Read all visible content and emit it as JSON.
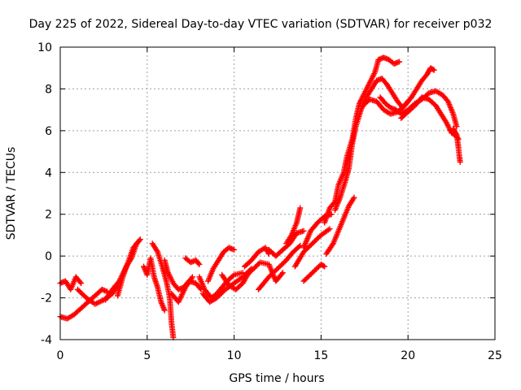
{
  "chart_data": {
    "type": "scatter",
    "title": "Day 225 of 2022, Sidereal Day-to-day VTEC variation (SDTVAR) for receiver p032",
    "xlabel": "GPS time / hours",
    "ylabel": "SDTVAR / TECUs",
    "xlim": [
      0,
      25
    ],
    "ylim": [
      -4,
      10
    ],
    "xticks": [
      0,
      5,
      10,
      15,
      20,
      25
    ],
    "yticks": [
      -4,
      -2,
      0,
      2,
      4,
      6,
      8,
      10
    ],
    "grid": true,
    "marker": "+",
    "series": [
      {
        "name": "SDTVAR",
        "color": "#ff0000",
        "tracks": [
          [
            [
              0.0,
              -1.3
            ],
            [
              0.3,
              -1.2
            ],
            [
              0.6,
              -1.6
            ],
            [
              0.9,
              -1.0
            ],
            [
              1.2,
              -1.3
            ]
          ],
          [
            [
              0.0,
              -2.9
            ],
            [
              0.4,
              -3.0
            ],
            [
              0.8,
              -2.8
            ],
            [
              1.2,
              -2.5
            ],
            [
              1.6,
              -2.2
            ],
            [
              2.0,
              -1.9
            ],
            [
              2.4,
              -1.6
            ],
            [
              2.7,
              -1.7
            ]
          ],
          [
            [
              1.0,
              -1.6
            ],
            [
              1.5,
              -2.0
            ],
            [
              2.0,
              -2.3
            ],
            [
              2.5,
              -2.1
            ],
            [
              3.0,
              -1.8
            ],
            [
              3.3,
              -1.4
            ]
          ],
          [
            [
              2.6,
              -2.1
            ],
            [
              3.0,
              -1.6
            ],
            [
              3.4,
              -1.2
            ],
            [
              3.8,
              -0.5
            ],
            [
              4.1,
              -0.1
            ],
            [
              4.4,
              0.6
            ],
            [
              4.6,
              0.8
            ]
          ],
          [
            [
              3.3,
              -1.9
            ],
            [
              3.6,
              -1.0
            ],
            [
              3.9,
              -0.3
            ],
            [
              4.2,
              0.4
            ],
            [
              4.5,
              0.7
            ]
          ],
          [
            [
              4.8,
              -0.5
            ],
            [
              5.0,
              -0.9
            ],
            [
              5.2,
              -0.1
            ],
            [
              5.4,
              -1.0
            ],
            [
              5.6,
              -1.5
            ],
            [
              5.8,
              -2.2
            ],
            [
              6.0,
              -2.6
            ]
          ],
          [
            [
              5.3,
              0.6
            ],
            [
              5.6,
              0.2
            ],
            [
              5.9,
              -0.6
            ],
            [
              6.1,
              -1.2
            ],
            [
              6.3,
              -2.0
            ],
            [
              6.4,
              -3.2
            ],
            [
              6.5,
              -3.9
            ]
          ],
          [
            [
              6.0,
              -0.2
            ],
            [
              6.2,
              -0.8
            ],
            [
              6.5,
              -1.3
            ],
            [
              6.8,
              -1.6
            ],
            [
              7.1,
              -1.5
            ],
            [
              7.4,
              -1.2
            ],
            [
              7.8,
              -1.3
            ],
            [
              8.1,
              -1.6
            ]
          ],
          [
            [
              6.4,
              -1.8
            ],
            [
              6.8,
              -2.2
            ],
            [
              7.2,
              -1.5
            ],
            [
              7.6,
              -1.0
            ]
          ],
          [
            [
              7.2,
              -0.1
            ],
            [
              7.5,
              -0.3
            ],
            [
              7.8,
              -0.2
            ],
            [
              8.0,
              -0.4
            ]
          ],
          [
            [
              8.0,
              -1.0
            ],
            [
              8.3,
              -1.6
            ],
            [
              8.7,
              -2.0
            ],
            [
              9.0,
              -1.8
            ],
            [
              9.3,
              -1.5
            ],
            [
              9.6,
              -1.2
            ],
            [
              10.0,
              -0.9
            ],
            [
              10.5,
              -0.8
            ]
          ],
          [
            [
              8.2,
              -1.8
            ],
            [
              8.6,
              -2.2
            ],
            [
              9.0,
              -2.0
            ],
            [
              9.5,
              -1.6
            ],
            [
              10.0,
              -1.3
            ],
            [
              10.5,
              -1.0
            ],
            [
              11.0,
              -0.6
            ]
          ],
          [
            [
              8.5,
              -1.2
            ],
            [
              8.8,
              -0.6
            ],
            [
              9.1,
              -0.2
            ],
            [
              9.4,
              0.2
            ],
            [
              9.7,
              0.4
            ],
            [
              10.0,
              0.3
            ]
          ],
          [
            [
              9.3,
              -0.9
            ],
            [
              9.7,
              -1.4
            ],
            [
              10.1,
              -1.6
            ],
            [
              10.5,
              -1.3
            ],
            [
              10.9,
              -0.7
            ]
          ],
          [
            [
              10.6,
              -0.5
            ],
            [
              11.0,
              -0.2
            ],
            [
              11.4,
              0.2
            ],
            [
              11.8,
              0.4
            ],
            [
              12.0,
              0.1
            ]
          ],
          [
            [
              10.6,
              -1.0
            ],
            [
              11.0,
              -0.7
            ],
            [
              11.5,
              -0.3
            ],
            [
              12.0,
              -0.4
            ],
            [
              12.4,
              -1.2
            ],
            [
              12.8,
              -0.8
            ]
          ],
          [
            [
              11.4,
              -1.6
            ],
            [
              12.0,
              -1.0
            ],
            [
              12.5,
              -0.6
            ],
            [
              13.0,
              -0.2
            ],
            [
              13.4,
              0.2
            ],
            [
              13.8,
              0.5
            ]
          ],
          [
            [
              12.0,
              0.3
            ],
            [
              12.4,
              0.0
            ],
            [
              12.8,
              0.3
            ],
            [
              13.2,
              0.6
            ],
            [
              13.6,
              1.1
            ],
            [
              14.0,
              1.2
            ]
          ],
          [
            [
              13.0,
              0.6
            ],
            [
              13.3,
              1.0
            ],
            [
              13.6,
              1.6
            ],
            [
              13.8,
              2.3
            ]
          ],
          [
            [
              13.5,
              -0.5
            ],
            [
              14.0,
              0.2
            ],
            [
              14.5,
              0.6
            ],
            [
              15.0,
              1.0
            ],
            [
              15.5,
              1.3
            ]
          ],
          [
            [
              14.0,
              0.4
            ],
            [
              14.4,
              1.2
            ],
            [
              14.8,
              1.6
            ],
            [
              15.2,
              1.9
            ],
            [
              15.6,
              2.0
            ]
          ],
          [
            [
              14.0,
              -1.2
            ],
            [
              14.5,
              -0.8
            ],
            [
              15.0,
              -0.4
            ],
            [
              15.2,
              -0.5
            ]
          ],
          [
            [
              15.3,
              0.1
            ],
            [
              15.7,
              0.6
            ],
            [
              16.0,
              1.2
            ],
            [
              16.3,
              1.8
            ],
            [
              16.6,
              2.4
            ],
            [
              16.9,
              2.8
            ]
          ],
          [
            [
              15.2,
              1.6
            ],
            [
              15.5,
              2.3
            ],
            [
              15.8,
              2.6
            ],
            [
              16.0,
              3.4
            ],
            [
              16.3,
              4.0
            ],
            [
              16.5,
              4.8
            ],
            [
              16.8,
              5.6
            ],
            [
              17.0,
              6.6
            ],
            [
              17.2,
              7.3
            ],
            [
              17.5,
              7.8
            ],
            [
              17.8,
              8.3
            ],
            [
              18.1,
              8.8
            ],
            [
              18.3,
              9.4
            ],
            [
              18.6,
              9.5
            ],
            [
              18.9,
              9.4
            ],
            [
              19.2,
              9.2
            ],
            [
              19.5,
              9.3
            ]
          ],
          [
            [
              15.8,
              2.2
            ],
            [
              16.1,
              2.8
            ],
            [
              16.4,
              3.6
            ],
            [
              16.6,
              4.2
            ],
            [
              16.8,
              5.4
            ],
            [
              17.0,
              6.2
            ],
            [
              17.3,
              7.0
            ],
            [
              17.6,
              7.6
            ],
            [
              17.9,
              8.0
            ],
            [
              18.2,
              8.4
            ],
            [
              18.5,
              8.5
            ],
            [
              18.8,
              8.2
            ],
            [
              19.1,
              7.8
            ],
            [
              19.4,
              7.4
            ],
            [
              19.7,
              7.1
            ],
            [
              20.0,
              7.4
            ]
          ],
          [
            [
              17.4,
              7.2
            ],
            [
              17.8,
              7.5
            ],
            [
              18.2,
              7.4
            ],
            [
              18.6,
              7.0
            ],
            [
              19.0,
              6.8
            ],
            [
              19.4,
              6.9
            ],
            [
              19.8,
              7.2
            ],
            [
              20.2,
              7.6
            ],
            [
              20.5,
              8.0
            ],
            [
              20.8,
              8.4
            ],
            [
              21.1,
              8.7
            ],
            [
              21.3,
              9.0
            ],
            [
              21.5,
              8.9
            ]
          ],
          [
            [
              18.4,
              7.6
            ],
            [
              18.7,
              7.3
            ],
            [
              19.0,
              7.1
            ],
            [
              19.3,
              7.0
            ],
            [
              19.6,
              6.8
            ],
            [
              20.0,
              7.0
            ],
            [
              20.4,
              7.3
            ],
            [
              20.8,
              7.5
            ],
            [
              21.2,
              7.8
            ],
            [
              21.6,
              7.9
            ],
            [
              22.0,
              7.7
            ],
            [
              22.3,
              7.4
            ],
            [
              22.6,
              6.8
            ],
            [
              22.8,
              6.2
            ]
          ],
          [
            [
              19.6,
              6.6
            ],
            [
              20.0,
              6.9
            ],
            [
              20.4,
              7.2
            ],
            [
              20.8,
              7.6
            ],
            [
              21.2,
              7.5
            ],
            [
              21.6,
              7.2
            ],
            [
              21.9,
              6.8
            ],
            [
              22.2,
              6.4
            ],
            [
              22.5,
              5.9
            ],
            [
              22.7,
              5.8
            ],
            [
              22.9,
              5.6
            ]
          ],
          [
            [
              22.6,
              6.1
            ],
            [
              22.8,
              5.8
            ],
            [
              22.9,
              5.2
            ],
            [
              22.95,
              4.8
            ],
            [
              23.0,
              4.5
            ]
          ]
        ]
      }
    ]
  }
}
